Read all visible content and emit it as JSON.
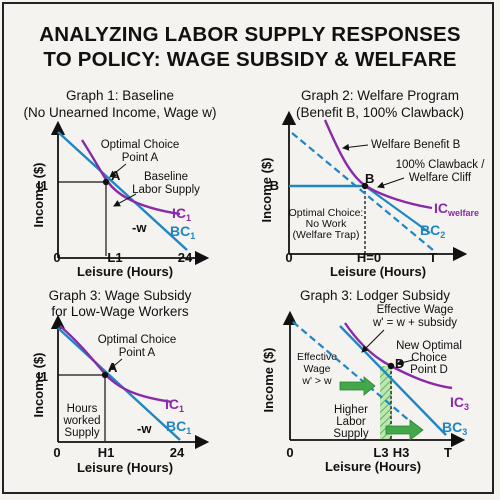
{
  "title": {
    "line1": "ANALYZING LABOR SUPPLY RESPONSES",
    "line2": "TO POLICY: WAGE SUBSIDY & WELFARE"
  },
  "colors": {
    "budget": "#1f86c4",
    "indiff": "#8a2aa8",
    "green": "#43a84a",
    "ink": "#111111"
  },
  "chart_data": [
    {
      "type": "line",
      "title": "Graph 1: Baseline",
      "subtitle": "(No Unearned Income, Wage w)",
      "xlabel": "Leisure (Hours)",
      "ylabel": "Income ($)",
      "x_ticks": [
        "0",
        "L1",
        "24"
      ],
      "y_ticks": [
        "I1"
      ],
      "series": [
        {
          "name": "BC1",
          "kind": "budget-line"
        },
        {
          "name": "IC1",
          "kind": "indifference-curve"
        }
      ],
      "annotations": [
        "Optimal Choice Point A",
        "Baseline Labor Supply",
        "-w",
        "A"
      ]
    },
    {
      "type": "line",
      "title": "Graph 2: Welfare Program",
      "subtitle": "(Benefit B, 100% Clawback)",
      "xlabel": "Leisure (Hours)",
      "ylabel": "Income ($)",
      "x_ticks": [
        "0",
        "H=0",
        "T"
      ],
      "y_ticks": [
        "B"
      ],
      "series": [
        {
          "name": "BC2",
          "kind": "budget-line"
        },
        {
          "name": "ICwelfare",
          "kind": "indifference-curve"
        }
      ],
      "annotations": [
        "Welfare Benefit B",
        "100% Clawback / Welfare Cliff",
        "Optimal Choice: No Work (Welfare Trap)",
        "B"
      ]
    },
    {
      "type": "line",
      "title": "Graph 3: Wage Subsidy",
      "subtitle": "for Low-Wage Workers",
      "xlabel": "Leisure (Hours)",
      "ylabel": "Income ($)",
      "x_ticks": [
        "0",
        "H1",
        "24"
      ],
      "y_ticks": [
        "I1"
      ],
      "series": [
        {
          "name": "BC1",
          "kind": "budget-line"
        },
        {
          "name": "IC1",
          "kind": "indifference-curve"
        }
      ],
      "annotations": [
        "Optimal Choice Point A",
        "Hours worked Supply",
        "-w",
        "A"
      ]
    },
    {
      "type": "line",
      "title": "Graph 3: Lodger Subsidy",
      "xlabel": "Leisure (Hours)",
      "ylabel": "Income ($)",
      "x_ticks": [
        "0",
        "L3",
        "H3",
        "T"
      ],
      "series": [
        {
          "name": "BC3",
          "kind": "budget-line"
        },
        {
          "name": "IC3",
          "kind": "indifference-curve"
        }
      ],
      "annotations": [
        "Effective Wage w' = w + subsidy",
        "New Optimal Choice Point D",
        "Effective Wage w' > w",
        "Higher Labor Supply",
        "D"
      ]
    }
  ]
}
